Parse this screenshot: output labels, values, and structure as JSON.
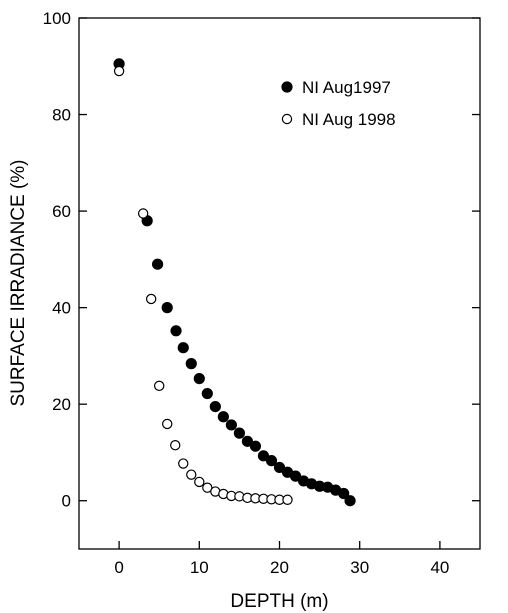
{
  "chart_data": {
    "type": "scatter",
    "xlabel": "DEPTH (m)",
    "ylabel": "SURFACE  IRRADIANCE  (%)",
    "xlim": [
      -5,
      45
    ],
    "ylim": [
      -10,
      100
    ],
    "xticks": [
      0,
      10,
      20,
      30,
      40
    ],
    "yticks": [
      0,
      20,
      40,
      60,
      80,
      100
    ],
    "xtick_labels": [
      "0",
      "10",
      "20",
      "30",
      "40"
    ],
    "ytick_labels": [
      "0",
      "20",
      "40",
      "60",
      "80",
      "100"
    ],
    "grid": false,
    "legend_position": "top-right",
    "series": [
      {
        "name": "NI Aug1997",
        "marker": "filled-circle",
        "color": "#000000",
        "x": [
          0,
          3.5,
          4.8,
          6.0,
          7.1,
          8.0,
          9.0,
          10.0,
          11.0,
          12.0,
          13.0,
          14.0,
          15.0,
          16.0,
          17.0,
          18.0,
          19.0,
          20.0,
          21.0,
          22.0,
          23.0,
          24.0,
          25.0,
          26.0,
          27.0,
          28.0,
          28.8
        ],
        "y": [
          90.5,
          58,
          49,
          40,
          35.2,
          31.7,
          28.4,
          25.3,
          22.2,
          19.5,
          17.4,
          15.7,
          14.0,
          12.3,
          11.3,
          9.3,
          8.3,
          6.9,
          5.9,
          5.1,
          4.1,
          3.5,
          3.0,
          2.8,
          2.2,
          1.5,
          0
        ]
      },
      {
        "name": "NI Aug 1998",
        "marker": "open-circle",
        "color": "#000000",
        "x": [
          0,
          3.0,
          4.0,
          5.0,
          6.0,
          7.0,
          8.0,
          9.0,
          10.0,
          11.0,
          12.0,
          13.0,
          14.0,
          15.0,
          16.0,
          17.0,
          18.0,
          19.0,
          20.0,
          21.0
        ],
        "y": [
          89,
          59.5,
          41.8,
          23.8,
          15.9,
          11.5,
          7.7,
          5.4,
          3.9,
          2.7,
          1.9,
          1.4,
          1.0,
          0.9,
          0.6,
          0.5,
          0.4,
          0.3,
          0.2,
          0.2
        ]
      }
    ]
  }
}
